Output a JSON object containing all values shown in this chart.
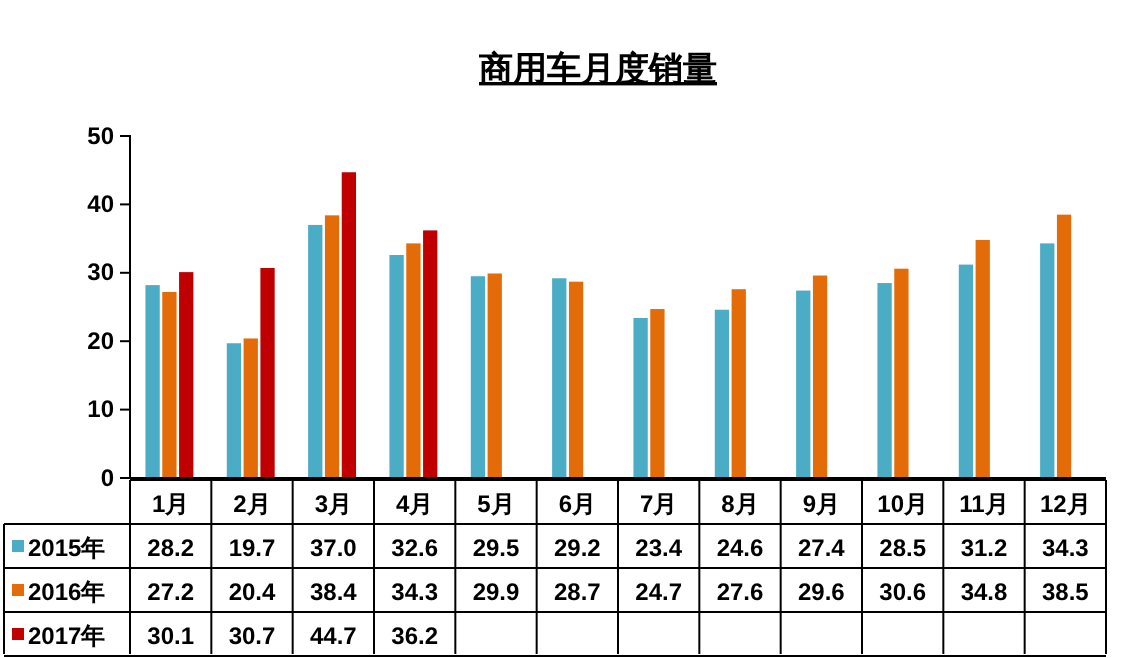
{
  "chart_data": {
    "type": "bar",
    "title": "商用车月度销量",
    "categories": [
      "1月",
      "2月",
      "3月",
      "4月",
      "5月",
      "6月",
      "7月",
      "8月",
      "9月",
      "10月",
      "11月",
      "12月"
    ],
    "series": [
      {
        "name": "2015年",
        "color": "#4bacc6",
        "values": [
          28.2,
          19.7,
          37.0,
          32.6,
          29.5,
          29.2,
          23.4,
          24.6,
          27.4,
          28.5,
          31.2,
          34.3
        ],
        "value_labels": [
          "28.2",
          "19.7",
          "37.0",
          "32.6",
          "29.5",
          "29.2",
          "23.4",
          "24.6",
          "27.4",
          "28.5",
          "31.2",
          "34.3"
        ]
      },
      {
        "name": "2016年",
        "color": "#e36c09",
        "values": [
          27.2,
          20.4,
          38.4,
          34.3,
          29.9,
          28.7,
          24.7,
          27.6,
          29.6,
          30.6,
          34.8,
          38.5
        ],
        "value_labels": [
          "27.2",
          "20.4",
          "38.4",
          "34.3",
          "29.9",
          "28.7",
          "24.7",
          "27.6",
          "29.6",
          "30.6",
          "34.8",
          "38.5"
        ]
      },
      {
        "name": "2017年",
        "color": "#c00000",
        "values": [
          30.1,
          30.7,
          44.7,
          36.2,
          null,
          null,
          null,
          null,
          null,
          null,
          null,
          null
        ],
        "value_labels": [
          "30.1",
          "30.7",
          "44.7",
          "36.2",
          null,
          null,
          null,
          null,
          null,
          null,
          null,
          null
        ]
      }
    ],
    "ylim": [
      0,
      50
    ],
    "yticks": [
      0,
      10,
      20,
      30,
      40,
      50
    ],
    "grid": false,
    "legend": "bottom"
  }
}
